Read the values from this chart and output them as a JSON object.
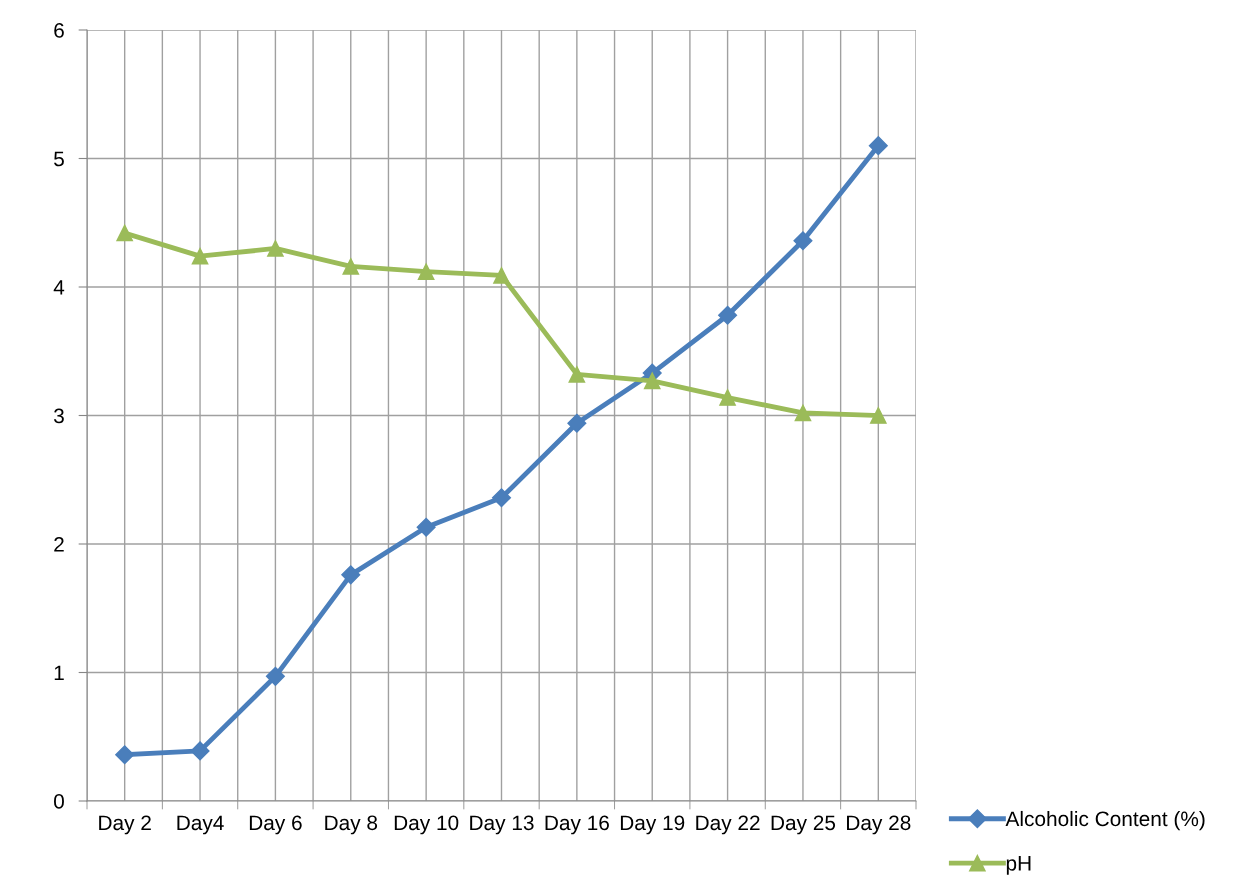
{
  "chart_data": {
    "type": "line",
    "categories": [
      "Day 2",
      "Day4",
      "Day 6",
      "Day 8",
      "Day 10",
      "Day 13",
      "Day 16",
      "Day 19",
      "Day 22",
      "Day 25",
      "Day 28"
    ],
    "series": [
      {
        "name": "Alcoholic Content (%)",
        "color": "#4a7ebb",
        "marker": "diamond",
        "values": [
          0.36,
          0.39,
          0.97,
          1.76,
          2.13,
          2.36,
          2.94,
          3.33,
          3.78,
          4.36,
          5.1
        ]
      },
      {
        "name": "pH",
        "color": "#9bbb59",
        "marker": "triangle",
        "values": [
          4.42,
          4.24,
          4.3,
          4.16,
          4.12,
          4.09,
          3.32,
          3.27,
          3.14,
          3.02,
          3.0
        ]
      }
    ],
    "ylim": [
      0,
      6
    ],
    "yticks": [
      0,
      1,
      2,
      3,
      4,
      5,
      6
    ],
    "grid": true,
    "legend": "bottom right",
    "line_style": "solid"
  }
}
